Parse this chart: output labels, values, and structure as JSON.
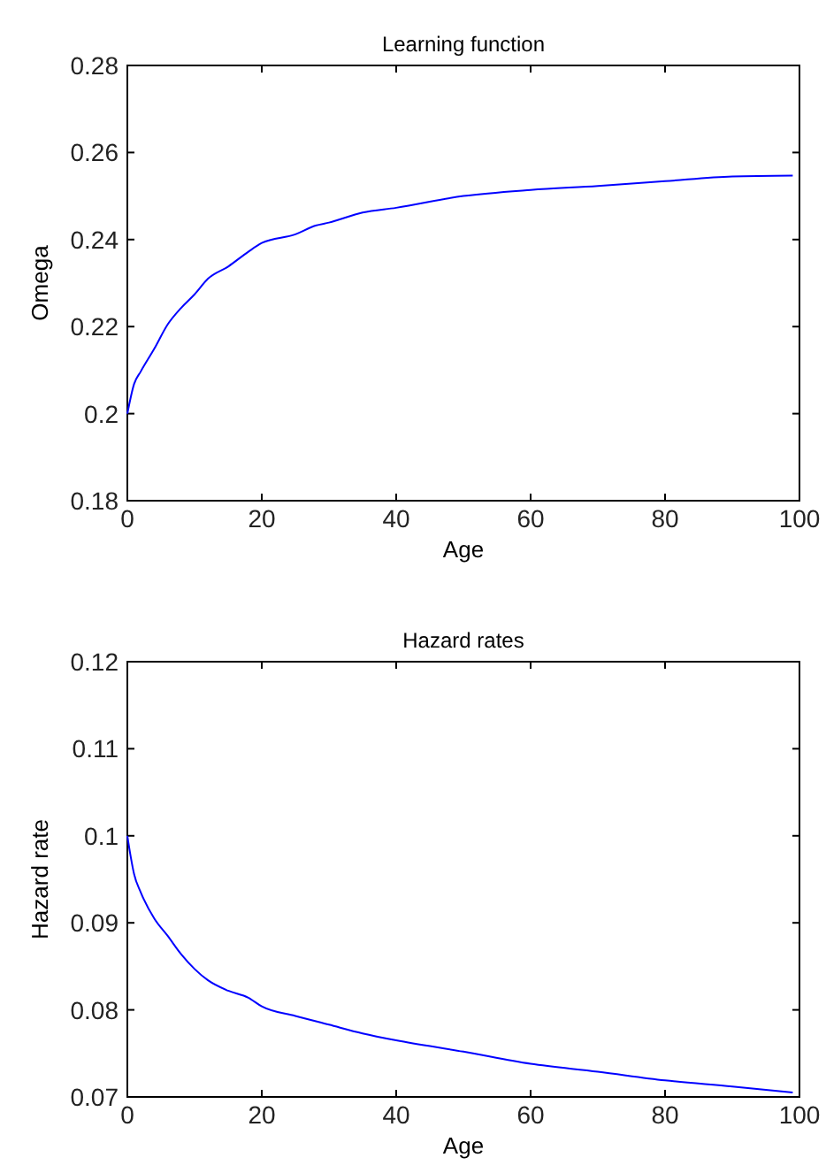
{
  "chart_data": [
    {
      "type": "line",
      "title": "Learning function",
      "xlabel": "Age",
      "ylabel": "Omega",
      "xlim": [
        0,
        100
      ],
      "xticks": [
        0,
        20,
        40,
        60,
        80,
        100
      ],
      "ylim": [
        0.18,
        0.28
      ],
      "yticks": [
        0.18,
        0.2,
        0.22,
        0.24,
        0.26,
        0.28
      ],
      "series": [
        {
          "color": "#0000ff",
          "x": [
            0,
            1,
            2,
            4,
            6,
            8,
            10,
            12,
            15,
            18,
            20,
            25,
            28,
            30,
            35,
            40,
            50,
            60,
            70,
            80,
            90,
            99
          ],
          "values": [
            0.2,
            0.2068,
            0.2097,
            0.2149,
            0.2205,
            0.2243,
            0.2274,
            0.231,
            0.2338,
            0.2372,
            0.2392,
            0.2412,
            0.2432,
            0.2439,
            0.2462,
            0.2473,
            0.25,
            0.2514,
            0.2523,
            0.2534,
            0.2545,
            0.2547
          ]
        }
      ]
    },
    {
      "type": "line",
      "title": "Hazard rates",
      "xlabel": "Age",
      "ylabel": "Hazard rate",
      "xlim": [
        0,
        100
      ],
      "xticks": [
        0,
        20,
        40,
        60,
        80,
        100
      ],
      "ylim": [
        0.07,
        0.12
      ],
      "yticks": [
        0.07,
        0.08,
        0.09,
        0.1,
        0.11,
        0.12
      ],
      "series": [
        {
          "color": "#0000ff",
          "x": [
            0,
            0.5,
            1,
            2,
            4,
            6,
            8,
            10,
            12,
            15,
            18,
            20,
            25,
            30,
            35,
            40,
            50,
            60,
            70,
            80,
            90,
            99
          ],
          "values": [
            0.1,
            0.0976,
            0.0956,
            0.0935,
            0.0905,
            0.0885,
            0.0864,
            0.0847,
            0.0834,
            0.0822,
            0.0814,
            0.0804,
            0.0793,
            0.0783,
            0.0773,
            0.0765,
            0.0752,
            0.0738,
            0.0729,
            0.0719,
            0.0712,
            0.0705
          ]
        }
      ]
    }
  ]
}
